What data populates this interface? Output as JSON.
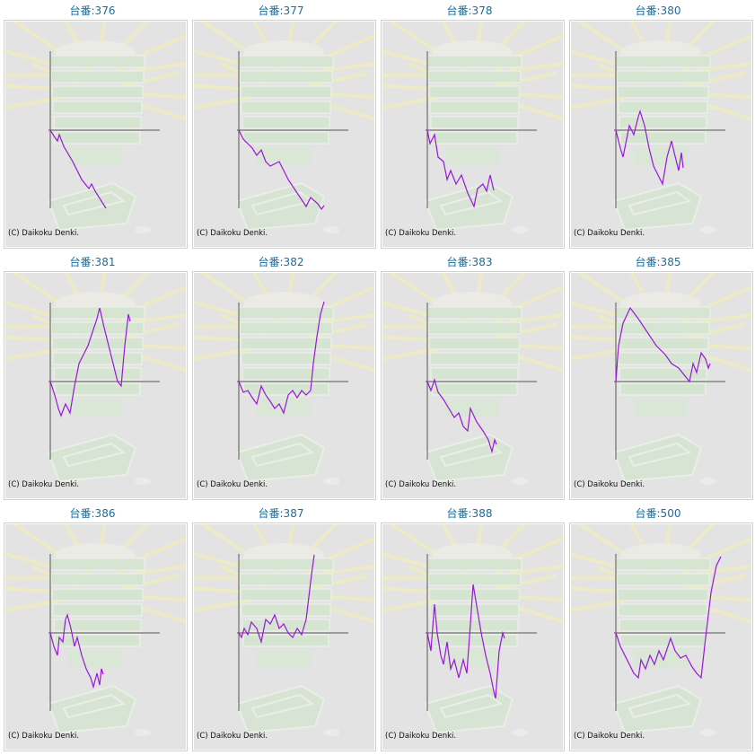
{
  "copyright": "(C) Daikoku Denki.",
  "title_prefix": "台番:",
  "colors": {
    "line": "#9a17d8",
    "axis": "#555555",
    "title": "#1f6b9a"
  },
  "chart_data": [
    {
      "type": "line",
      "title": "台番:376",
      "x": [
        0,
        5,
        8,
        10,
        15,
        25,
        35,
        43,
        46,
        50,
        62
      ],
      "y": [
        0,
        -8,
        -12,
        -5,
        -18,
        -35,
        -55,
        -65,
        -60,
        -68,
        -87
      ]
    },
    {
      "type": "line",
      "title": "台番:377",
      "x": [
        0,
        5,
        10,
        15,
        20,
        25,
        30,
        35,
        45,
        55,
        65,
        75,
        80,
        88,
        92,
        95
      ],
      "y": [
        0,
        -10,
        -15,
        -20,
        -28,
        -22,
        -35,
        -40,
        -35,
        -55,
        -70,
        -85,
        -75,
        -82,
        -88,
        -84
      ]
    },
    {
      "type": "line",
      "title": "台番:378",
      "x": [
        0,
        3,
        8,
        12,
        18,
        22,
        26,
        32,
        38,
        45,
        52,
        56,
        62,
        66,
        70,
        74
      ],
      "y": [
        0,
        -15,
        -5,
        -30,
        -35,
        -55,
        -45,
        -60,
        -50,
        -70,
        -85,
        -65,
        -60,
        -68,
        -50,
        -67
      ]
    },
    {
      "type": "line",
      "title": "台番:380",
      "x": [
        0,
        5,
        8,
        12,
        15,
        20,
        25,
        27,
        32,
        37,
        42,
        47,
        52,
        57,
        62,
        65,
        70,
        73,
        75
      ],
      "y": [
        0,
        -20,
        -30,
        -10,
        5,
        -5,
        15,
        21,
        5,
        -20,
        -40,
        -50,
        -60,
        -30,
        -12,
        -25,
        -45,
        -25,
        -42
      ]
    },
    {
      "type": "line",
      "title": "台番:381",
      "x": [
        0,
        5,
        9,
        12,
        17,
        22,
        27,
        32,
        37,
        42,
        47,
        52,
        55,
        60,
        65,
        70,
        75,
        79,
        83,
        87,
        89
      ],
      "y": [
        0,
        -15,
        -30,
        -38,
        -25,
        -35,
        -5,
        20,
        30,
        40,
        55,
        70,
        82,
        60,
        40,
        20,
        0,
        -5,
        40,
        75,
        67
      ]
    },
    {
      "type": "line",
      "title": "台番:382",
      "x": [
        0,
        5,
        10,
        15,
        20,
        25,
        30,
        35,
        40,
        45,
        50,
        55,
        60,
        65,
        70,
        75,
        80,
        83,
        87,
        91,
        95
      ],
      "y": [
        0,
        -12,
        -10,
        -18,
        -25,
        -5,
        -15,
        -22,
        -30,
        -25,
        -35,
        -15,
        -10,
        -18,
        -10,
        -15,
        -10,
        20,
        50,
        75,
        89
      ]
    },
    {
      "type": "line",
      "title": "台番:383",
      "x": [
        0,
        4,
        8,
        12,
        18,
        24,
        30,
        35,
        40,
        45,
        48,
        55,
        62,
        68,
        72,
        75,
        77
      ],
      "y": [
        0,
        -10,
        2,
        -12,
        -20,
        -30,
        -40,
        -35,
        -50,
        -55,
        -30,
        -45,
        -55,
        -65,
        -78,
        -65,
        -70
      ]
    },
    {
      "type": "line",
      "title": "台番:385",
      "x": [
        0,
        3,
        8,
        16,
        25,
        35,
        45,
        55,
        62,
        70,
        78,
        82,
        86,
        90,
        95,
        100,
        103,
        105
      ],
      "y": [
        0,
        40,
        65,
        82,
        70,
        55,
        40,
        30,
        20,
        15,
        5,
        0,
        20,
        10,
        32,
        25,
        15,
        20
      ]
    },
    {
      "type": "line",
      "title": "台番:386",
      "x": [
        0,
        4,
        8,
        10,
        14,
        17,
        19,
        23,
        27,
        30,
        35,
        40,
        45,
        48,
        52,
        55,
        57,
        59
      ],
      "y": [
        0,
        -15,
        -25,
        -5,
        -10,
        15,
        20,
        5,
        -15,
        -5,
        -25,
        -40,
        -50,
        -60,
        -45,
        -58,
        -40,
        -46
      ]
    },
    {
      "type": "line",
      "title": "台番:387",
      "x": [
        0,
        3,
        6,
        10,
        14,
        20,
        25,
        30,
        35,
        40,
        45,
        50,
        55,
        60,
        65,
        70,
        75,
        78,
        81,
        84
      ],
      "y": [
        0,
        -5,
        5,
        -2,
        12,
        5,
        -10,
        15,
        10,
        20,
        5,
        10,
        0,
        -5,
        5,
        -2,
        15,
        40,
        65,
        87
      ]
    },
    {
      "type": "line",
      "title": "台番:388",
      "x": [
        0,
        4,
        8,
        11,
        15,
        18,
        22,
        26,
        30,
        35,
        40,
        44,
        48,
        51,
        55,
        60,
        65,
        70,
        74,
        76,
        80,
        84,
        86
      ],
      "y": [
        0,
        -20,
        32,
        0,
        -25,
        -35,
        -10,
        -40,
        -30,
        -50,
        -30,
        -45,
        10,
        54,
        30,
        0,
        -25,
        -45,
        -65,
        -73,
        -20,
        0,
        -6
      ]
    },
    {
      "type": "line",
      "title": "台番:500",
      "x": [
        0,
        5,
        10,
        15,
        20,
        25,
        28,
        33,
        38,
        43,
        48,
        53,
        58,
        61,
        66,
        72,
        78,
        85,
        90,
        95,
        100,
        106,
        112,
        117
      ],
      "y": [
        0,
        -15,
        -25,
        -35,
        -45,
        -50,
        -30,
        -40,
        -25,
        -35,
        -20,
        -30,
        -15,
        -6,
        -20,
        -28,
        -25,
        -38,
        -45,
        -50,
        -5,
        45,
        75,
        85
      ]
    }
  ]
}
